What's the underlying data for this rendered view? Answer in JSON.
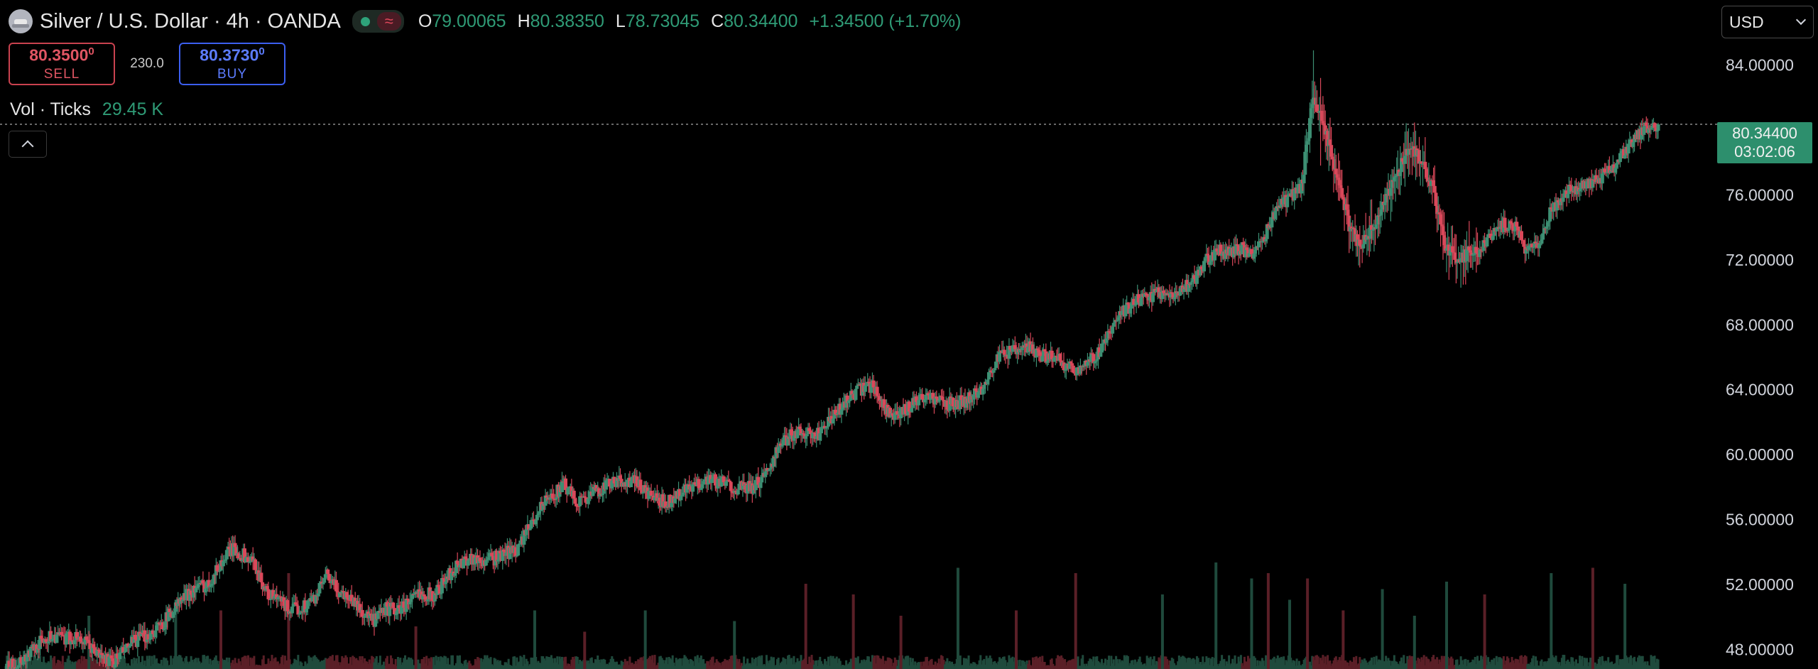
{
  "header": {
    "title": "Silver / U.S. Dollar · 4h · OANDA",
    "ohlc": {
      "o_label": "O",
      "o": "79.00065",
      "h_label": "H",
      "h": "80.38350",
      "l_label": "L",
      "l": "78.73045",
      "c_label": "C",
      "c": "80.34400",
      "change": "+1.34500 (+1.70%)"
    },
    "pill_icon": "≈"
  },
  "trade": {
    "sell_price": "80.3500",
    "sell_sup": "0",
    "sell_label": "SELL",
    "spread": "230.0",
    "buy_price": "80.3730",
    "buy_sup": "0",
    "buy_label": "BUY"
  },
  "volume": {
    "label": "Vol · Ticks",
    "value": "29.45 K"
  },
  "currency": {
    "selected": "USD"
  },
  "last_price": {
    "price": "80.34400",
    "countdown": "03:02:06"
  },
  "colors": {
    "up": "#3d8f73",
    "down": "#d9485a",
    "vol_up": "#1f4a3c",
    "vol_down": "#5a1f27",
    "text": "#d1d4dc"
  },
  "chart_data": {
    "type": "candlestick",
    "title": "Silver / U.S. Dollar · 4h · OANDA",
    "y_axis_ticks": [
      "84.00000",
      "76.00000",
      "72.00000",
      "68.00000",
      "64.00000",
      "60.00000",
      "56.00000",
      "52.00000",
      "48.00000"
    ],
    "y_tick_values": [
      84,
      76,
      72,
      68,
      64,
      60,
      56,
      52,
      48
    ],
    "ylim": [
      46.8,
      88.0
    ],
    "grid": false,
    "last_close": 80.344,
    "close_path": [
      [
        0,
        46.8
      ],
      [
        10,
        47.2
      ],
      [
        20,
        47.8
      ],
      [
        30,
        48.5
      ],
      [
        40,
        48.9
      ],
      [
        50,
        48.6
      ],
      [
        60,
        48.8
      ],
      [
        70,
        48.2
      ],
      [
        80,
        47.6
      ],
      [
        90,
        47.2
      ],
      [
        100,
        47.9
      ],
      [
        110,
        48.6
      ],
      [
        120,
        48.9
      ],
      [
        130,
        49.4
      ],
      [
        140,
        50.4
      ],
      [
        150,
        51.2
      ],
      [
        160,
        51.8
      ],
      [
        170,
        52.0
      ],
      [
        180,
        53.2
      ],
      [
        190,
        54.2
      ],
      [
        200,
        53.8
      ],
      [
        210,
        53.2
      ],
      [
        220,
        51.4
      ],
      [
        230,
        51.0
      ],
      [
        240,
        50.4
      ],
      [
        250,
        50.6
      ],
      [
        260,
        51.2
      ],
      [
        270,
        52.5
      ],
      [
        280,
        51.6
      ],
      [
        290,
        51.2
      ],
      [
        300,
        50.3
      ],
      [
        310,
        49.7
      ],
      [
        320,
        50.5
      ],
      [
        330,
        50.4
      ],
      [
        340,
        51.0
      ],
      [
        350,
        51.5
      ],
      [
        360,
        51.3
      ],
      [
        370,
        52.3
      ],
      [
        380,
        53.2
      ],
      [
        390,
        53.7
      ],
      [
        400,
        53.4
      ],
      [
        410,
        53.6
      ],
      [
        420,
        53.9
      ],
      [
        430,
        54.2
      ],
      [
        440,
        55.4
      ],
      [
        450,
        56.8
      ],
      [
        460,
        57.5
      ],
      [
        470,
        58.1
      ],
      [
        480,
        57.1
      ],
      [
        490,
        57.4
      ],
      [
        500,
        57.9
      ],
      [
        510,
        58.2
      ],
      [
        520,
        58.4
      ],
      [
        530,
        58.3
      ],
      [
        540,
        57.6
      ],
      [
        550,
        57.1
      ],
      [
        560,
        57.2
      ],
      [
        570,
        57.7
      ],
      [
        580,
        58.0
      ],
      [
        590,
        58.6
      ],
      [
        600,
        58.3
      ],
      [
        610,
        58.1
      ],
      [
        620,
        57.9
      ],
      [
        630,
        58.0
      ],
      [
        640,
        59.0
      ],
      [
        650,
        60.4
      ],
      [
        660,
        61.2
      ],
      [
        670,
        61.5
      ],
      [
        680,
        61.0
      ],
      [
        690,
        61.8
      ],
      [
        700,
        62.6
      ],
      [
        710,
        63.6
      ],
      [
        720,
        64.0
      ],
      [
        730,
        64.3
      ],
      [
        740,
        62.8
      ],
      [
        750,
        62.2
      ],
      [
        760,
        63.0
      ],
      [
        770,
        63.6
      ],
      [
        780,
        63.5
      ],
      [
        790,
        63.1
      ],
      [
        800,
        63.2
      ],
      [
        810,
        63.4
      ],
      [
        820,
        64.0
      ],
      [
        830,
        65.4
      ],
      [
        840,
        66.3
      ],
      [
        850,
        66.3
      ],
      [
        860,
        66.6
      ],
      [
        870,
        66.2
      ],
      [
        880,
        66.0
      ],
      [
        890,
        65.6
      ],
      [
        900,
        65.3
      ],
      [
        910,
        65.6
      ],
      [
        920,
        66.3
      ],
      [
        930,
        67.6
      ],
      [
        940,
        68.8
      ],
      [
        950,
        69.4
      ],
      [
        960,
        69.7
      ],
      [
        970,
        70.0
      ],
      [
        980,
        69.8
      ],
      [
        990,
        70.2
      ],
      [
        1000,
        70.8
      ],
      [
        1010,
        72.0
      ],
      [
        1020,
        72.5
      ],
      [
        1030,
        72.5
      ],
      [
        1040,
        72.7
      ],
      [
        1050,
        72.1
      ],
      [
        1060,
        73.6
      ],
      [
        1070,
        75.4
      ],
      [
        1080,
        75.8
      ],
      [
        1090,
        76.6
      ],
      [
        1100,
        82.0
      ],
      [
        1110,
        80.0
      ],
      [
        1120,
        77.0
      ],
      [
        1130,
        74.2
      ],
      [
        1140,
        72.8
      ],
      [
        1150,
        74.0
      ],
      [
        1160,
        75.6
      ],
      [
        1170,
        77.2
      ],
      [
        1180,
        79.0
      ],
      [
        1190,
        78.2
      ],
      [
        1200,
        76.6
      ],
      [
        1210,
        73.0
      ],
      [
        1220,
        72.0
      ],
      [
        1230,
        72.4
      ],
      [
        1240,
        72.6
      ],
      [
        1250,
        73.4
      ],
      [
        1260,
        74.2
      ],
      [
        1270,
        74.0
      ],
      [
        1280,
        72.4
      ],
      [
        1290,
        73.0
      ],
      [
        1300,
        75.0
      ],
      [
        1310,
        76.0
      ],
      [
        1320,
        76.4
      ],
      [
        1330,
        76.6
      ],
      [
        1340,
        77.0
      ],
      [
        1350,
        77.5
      ],
      [
        1360,
        78.5
      ],
      [
        1370,
        79.5
      ],
      [
        1380,
        80.1
      ],
      [
        1390,
        80.34
      ]
    ],
    "volume_spikes": [
      [
        70,
        0.5,
        1
      ],
      [
        143,
        0.65,
        1
      ],
      [
        181,
        0.55,
        0
      ],
      [
        238,
        0.9,
        0
      ],
      [
        345,
        0.4,
        0
      ],
      [
        445,
        0.55,
        1
      ],
      [
        487,
        0.35,
        0
      ],
      [
        538,
        0.55,
        1
      ],
      [
        613,
        0.45,
        1
      ],
      [
        673,
        0.8,
        0
      ],
      [
        713,
        0.7,
        0
      ],
      [
        753,
        0.5,
        0
      ],
      [
        801,
        0.95,
        1
      ],
      [
        850,
        0.55,
        0
      ],
      [
        900,
        0.9,
        0
      ],
      [
        973,
        0.7,
        1
      ],
      [
        1018,
        1.0,
        1
      ],
      [
        1048,
        0.85,
        1
      ],
      [
        1062,
        0.9,
        0
      ],
      [
        1080,
        0.65,
        1
      ],
      [
        1095,
        0.85,
        0
      ],
      [
        1125,
        0.55,
        0
      ],
      [
        1158,
        0.75,
        1
      ],
      [
        1185,
        0.5,
        1
      ],
      [
        1212,
        0.82,
        1
      ],
      [
        1244,
        0.7,
        0
      ],
      [
        1300,
        0.9,
        1
      ],
      [
        1335,
        0.95,
        0
      ],
      [
        1362,
        0.8,
        1
      ]
    ]
  }
}
